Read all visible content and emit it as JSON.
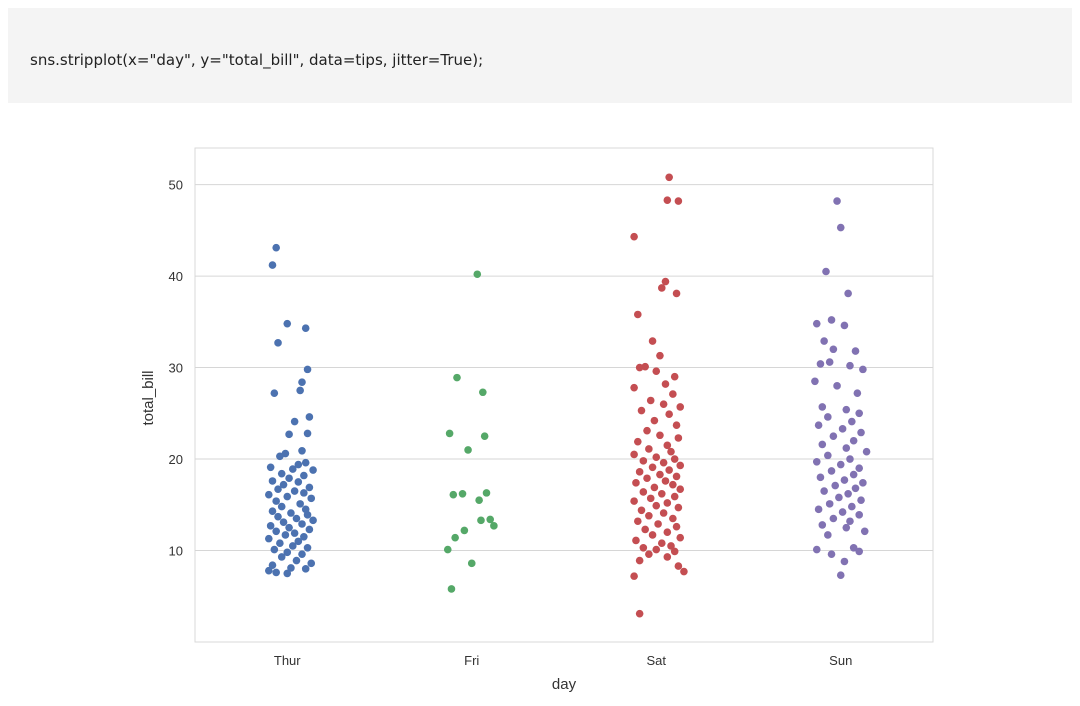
{
  "code_cell": {
    "code": "sns.stripplot(x=\"day\", y=\"total_bill\", data=tips, jitter=True);"
  },
  "chart_data": {
    "type": "scatter",
    "title": "",
    "xlabel": "day",
    "ylabel": "total_bill",
    "categories": [
      "Thur",
      "Fri",
      "Sat",
      "Sun"
    ],
    "ylim": [
      0,
      54
    ],
    "yticks": [
      10,
      20,
      30,
      40,
      50
    ],
    "grid": "horizontal",
    "series": [
      {
        "category": "Thur",
        "color": "#4c72b0",
        "points": [
          [
            -0.06,
            43.1
          ],
          [
            -0.08,
            41.2
          ],
          [
            0.0,
            34.8
          ],
          [
            0.1,
            34.3
          ],
          [
            -0.05,
            32.7
          ],
          [
            0.11,
            29.8
          ],
          [
            0.08,
            28.4
          ],
          [
            0.07,
            27.5
          ],
          [
            -0.07,
            27.2
          ],
          [
            0.12,
            24.6
          ],
          [
            0.04,
            24.1
          ],
          [
            0.11,
            22.8
          ],
          [
            0.01,
            22.7
          ],
          [
            0.08,
            20.9
          ],
          [
            -0.01,
            20.6
          ],
          [
            -0.04,
            20.3
          ],
          [
            0.1,
            19.6
          ],
          [
            0.06,
            19.4
          ],
          [
            -0.09,
            19.1
          ],
          [
            0.03,
            18.9
          ],
          [
            0.14,
            18.8
          ],
          [
            -0.03,
            18.4
          ],
          [
            0.09,
            18.2
          ],
          [
            0.01,
            17.9
          ],
          [
            -0.08,
            17.6
          ],
          [
            0.06,
            17.5
          ],
          [
            -0.02,
            17.2
          ],
          [
            0.12,
            16.9
          ],
          [
            -0.05,
            16.7
          ],
          [
            0.04,
            16.5
          ],
          [
            0.09,
            16.3
          ],
          [
            -0.1,
            16.1
          ],
          [
            0.0,
            15.9
          ],
          [
            0.13,
            15.7
          ],
          [
            -0.06,
            15.4
          ],
          [
            0.07,
            15.1
          ],
          [
            -0.03,
            14.8
          ],
          [
            0.1,
            14.5
          ],
          [
            -0.08,
            14.3
          ],
          [
            0.02,
            14.1
          ],
          [
            0.11,
            13.9
          ],
          [
            -0.05,
            13.7
          ],
          [
            0.05,
            13.5
          ],
          [
            0.14,
            13.3
          ],
          [
            -0.02,
            13.1
          ],
          [
            0.08,
            12.9
          ],
          [
            -0.09,
            12.7
          ],
          [
            0.01,
            12.5
          ],
          [
            0.12,
            12.3
          ],
          [
            -0.06,
            12.1
          ],
          [
            0.04,
            11.9
          ],
          [
            -0.01,
            11.7
          ],
          [
            0.09,
            11.5
          ],
          [
            -0.1,
            11.3
          ],
          [
            0.06,
            11.0
          ],
          [
            -0.04,
            10.8
          ],
          [
            0.03,
            10.5
          ],
          [
            0.11,
            10.3
          ],
          [
            -0.07,
            10.1
          ],
          [
            0.0,
            9.8
          ],
          [
            0.08,
            9.6
          ],
          [
            -0.03,
            9.3
          ],
          [
            0.05,
            8.9
          ],
          [
            0.13,
            8.6
          ],
          [
            -0.08,
            8.4
          ],
          [
            0.02,
            8.1
          ],
          [
            -0.1,
            7.8
          ],
          [
            0.1,
            8.0
          ],
          [
            -0.06,
            7.6
          ],
          [
            0.0,
            7.5
          ]
        ]
      },
      {
        "category": "Fri",
        "color": "#55a868",
        "points": [
          [
            0.03,
            40.2
          ],
          [
            -0.08,
            28.9
          ],
          [
            0.06,
            27.3
          ],
          [
            -0.12,
            22.8
          ],
          [
            0.07,
            22.5
          ],
          [
            -0.02,
            21.0
          ],
          [
            0.08,
            16.3
          ],
          [
            -0.1,
            16.1
          ],
          [
            -0.05,
            16.2
          ],
          [
            0.04,
            15.5
          ],
          [
            0.1,
            13.4
          ],
          [
            0.05,
            13.3
          ],
          [
            0.12,
            12.7
          ],
          [
            -0.04,
            12.2
          ],
          [
            -0.09,
            11.4
          ],
          [
            -0.13,
            10.1
          ],
          [
            0.0,
            8.6
          ],
          [
            -0.11,
            5.8
          ]
        ]
      },
      {
        "category": "Sat",
        "color": "#c44e52",
        "points": [
          [
            0.07,
            50.8
          ],
          [
            0.06,
            48.3
          ],
          [
            0.12,
            48.2
          ],
          [
            -0.12,
            44.3
          ],
          [
            0.05,
            39.4
          ],
          [
            0.03,
            38.7
          ],
          [
            0.11,
            38.1
          ],
          [
            -0.1,
            35.8
          ],
          [
            -0.02,
            32.9
          ],
          [
            0.02,
            31.3
          ],
          [
            -0.06,
            30.1
          ],
          [
            -0.09,
            30.0
          ],
          [
            0.0,
            29.6
          ],
          [
            0.1,
            29.0
          ],
          [
            0.05,
            28.2
          ],
          [
            -0.12,
            27.8
          ],
          [
            0.09,
            27.1
          ],
          [
            -0.03,
            26.4
          ],
          [
            0.04,
            26.0
          ],
          [
            0.13,
            25.7
          ],
          [
            -0.08,
            25.3
          ],
          [
            0.07,
            24.9
          ],
          [
            -0.01,
            24.2
          ],
          [
            0.11,
            23.7
          ],
          [
            -0.05,
            23.1
          ],
          [
            0.02,
            22.6
          ],
          [
            0.12,
            22.3
          ],
          [
            -0.1,
            21.9
          ],
          [
            0.06,
            21.5
          ],
          [
            -0.04,
            21.1
          ],
          [
            0.08,
            20.8
          ],
          [
            -0.12,
            20.5
          ],
          [
            0.0,
            20.2
          ],
          [
            0.1,
            20.0
          ],
          [
            -0.07,
            19.8
          ],
          [
            0.04,
            19.6
          ],
          [
            0.13,
            19.3
          ],
          [
            -0.02,
            19.1
          ],
          [
            0.07,
            18.8
          ],
          [
            -0.09,
            18.6
          ],
          [
            0.02,
            18.3
          ],
          [
            0.11,
            18.1
          ],
          [
            -0.05,
            17.9
          ],
          [
            0.05,
            17.6
          ],
          [
            -0.11,
            17.4
          ],
          [
            0.09,
            17.2
          ],
          [
            -0.01,
            16.9
          ],
          [
            0.13,
            16.7
          ],
          [
            -0.07,
            16.4
          ],
          [
            0.03,
            16.2
          ],
          [
            0.1,
            15.9
          ],
          [
            -0.03,
            15.7
          ],
          [
            -0.12,
            15.4
          ],
          [
            0.06,
            15.2
          ],
          [
            0.0,
            14.9
          ],
          [
            0.12,
            14.7
          ],
          [
            -0.08,
            14.4
          ],
          [
            0.04,
            14.1
          ],
          [
            -0.04,
            13.8
          ],
          [
            0.09,
            13.5
          ],
          [
            -0.1,
            13.2
          ],
          [
            0.01,
            12.9
          ],
          [
            0.11,
            12.6
          ],
          [
            -0.06,
            12.3
          ],
          [
            0.06,
            12.0
          ],
          [
            -0.02,
            11.7
          ],
          [
            0.13,
            11.4
          ],
          [
            -0.11,
            11.1
          ],
          [
            0.03,
            10.8
          ],
          [
            0.08,
            10.5
          ],
          [
            -0.07,
            10.3
          ],
          [
            0.0,
            10.1
          ],
          [
            0.1,
            9.9
          ],
          [
            -0.04,
            9.6
          ],
          [
            0.06,
            9.3
          ],
          [
            -0.09,
            8.9
          ],
          [
            0.12,
            8.3
          ],
          [
            0.15,
            7.7
          ],
          [
            -0.12,
            7.2
          ],
          [
            -0.09,
            3.1
          ]
        ]
      },
      {
        "category": "Sun",
        "color": "#8172b2",
        "points": [
          [
            -0.02,
            48.2
          ],
          [
            0.0,
            45.3
          ],
          [
            -0.08,
            40.5
          ],
          [
            0.04,
            38.1
          ],
          [
            -0.13,
            34.8
          ],
          [
            -0.05,
            35.2
          ],
          [
            0.02,
            34.6
          ],
          [
            -0.09,
            32.9
          ],
          [
            -0.04,
            32.0
          ],
          [
            0.08,
            31.8
          ],
          [
            -0.11,
            30.4
          ],
          [
            -0.06,
            30.6
          ],
          [
            0.05,
            30.2
          ],
          [
            0.12,
            29.8
          ],
          [
            -0.14,
            28.5
          ],
          [
            -0.02,
            28.0
          ],
          [
            0.09,
            27.2
          ],
          [
            -0.1,
            25.7
          ],
          [
            0.03,
            25.4
          ],
          [
            0.1,
            25.0
          ],
          [
            -0.07,
            24.6
          ],
          [
            0.06,
            24.1
          ],
          [
            -0.12,
            23.7
          ],
          [
            0.01,
            23.3
          ],
          [
            0.11,
            22.9
          ],
          [
            -0.04,
            22.5
          ],
          [
            0.07,
            22.0
          ],
          [
            -0.1,
            21.6
          ],
          [
            0.03,
            21.2
          ],
          [
            0.14,
            20.8
          ],
          [
            -0.07,
            20.4
          ],
          [
            0.05,
            20.0
          ],
          [
            -0.13,
            19.7
          ],
          [
            0.0,
            19.4
          ],
          [
            0.1,
            19.0
          ],
          [
            -0.05,
            18.7
          ],
          [
            0.07,
            18.3
          ],
          [
            -0.11,
            18.0
          ],
          [
            0.02,
            17.7
          ],
          [
            0.12,
            17.4
          ],
          [
            -0.03,
            17.1
          ],
          [
            0.08,
            16.8
          ],
          [
            -0.09,
            16.5
          ],
          [
            0.04,
            16.2
          ],
          [
            -0.01,
            15.8
          ],
          [
            0.11,
            15.5
          ],
          [
            -0.06,
            15.1
          ],
          [
            0.06,
            14.8
          ],
          [
            -0.12,
            14.5
          ],
          [
            0.01,
            14.2
          ],
          [
            0.1,
            13.9
          ],
          [
            -0.04,
            13.5
          ],
          [
            0.05,
            13.2
          ],
          [
            -0.1,
            12.8
          ],
          [
            0.03,
            12.5
          ],
          [
            0.13,
            12.1
          ],
          [
            -0.07,
            11.7
          ],
          [
            0.07,
            10.3
          ],
          [
            -0.13,
            10.1
          ],
          [
            0.1,
            9.9
          ],
          [
            -0.05,
            9.6
          ],
          [
            0.02,
            8.8
          ],
          [
            0.0,
            7.3
          ]
        ]
      }
    ]
  }
}
